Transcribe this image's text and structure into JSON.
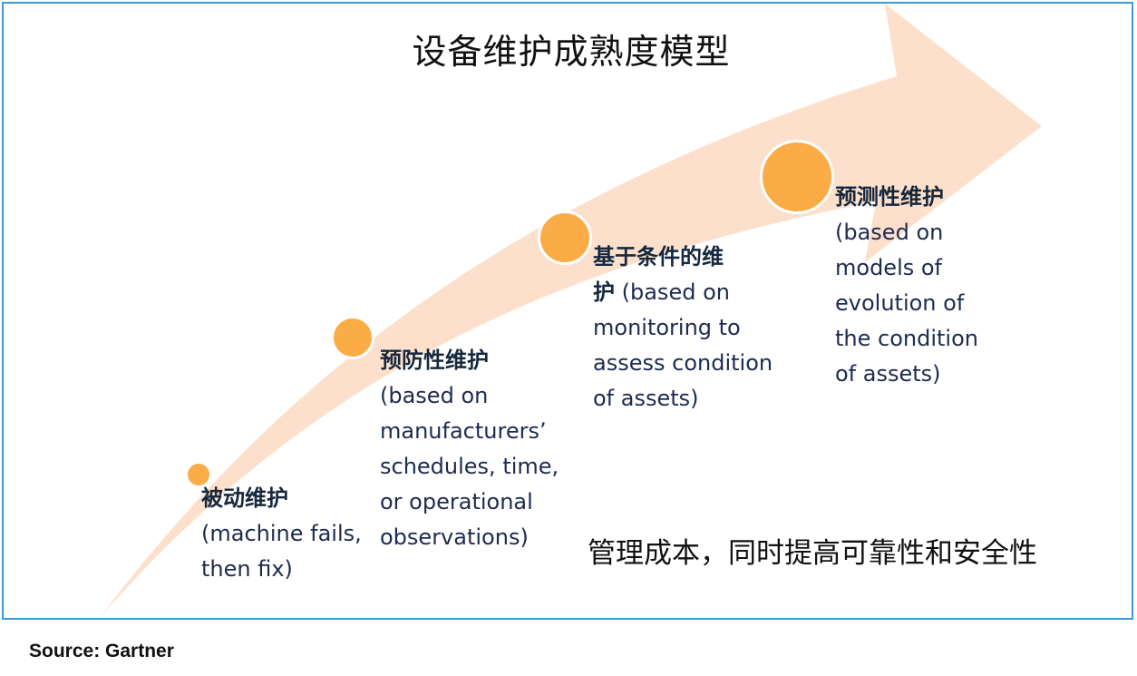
{
  "title": "设备维护成熟度模型",
  "stages": [
    {
      "name": "被动维护",
      "desc": "(machine fails,\nthen fix)"
    },
    {
      "name": "预防性维护",
      "desc": "(based on\nmanufacturers’\nschedules, time,\nor operational\nobservations)"
    },
    {
      "name_line1": "基于条件的维",
      "name_line2": "护",
      "desc_inline": " (based on",
      "desc": "monitoring to\nassess condition\nof assets)"
    },
    {
      "name": "预测性维护",
      "desc": "(based on\nmodels of\nevolution of\nthe condition\nof assets)"
    }
  ],
  "tagline": "管理成本，同时提高可靠性和安全性",
  "source": "Source: Gartner",
  "colors": {
    "arrow": "#fde0cc",
    "dot": "#fbac47",
    "border": "#3d9ad8",
    "stage_text": "#1d2b4f"
  }
}
